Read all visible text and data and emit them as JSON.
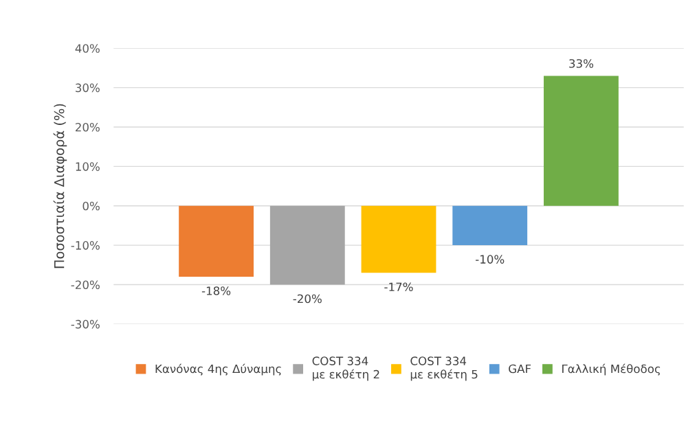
{
  "chart_data": {
    "type": "bar",
    "ylabel": "Ποσοστιαία Διαφορά (%)",
    "categories": [
      null
    ],
    "series": [
      {
        "name": "Κανόνας 4ης Δύναμης",
        "color": "#ed7d31",
        "values": [
          -18
        ],
        "value_labels": [
          "-18%"
        ]
      },
      {
        "name": "COST 334\nμε εκθέτη 2",
        "color": "#a5a5a5",
        "values": [
          -20
        ],
        "value_labels": [
          "-20%"
        ]
      },
      {
        "name": "COST 334\nμε εκθέτη 5",
        "color": "#ffc000",
        "values": [
          -17
        ],
        "value_labels": [
          "-17%"
        ]
      },
      {
        "name": "GAF",
        "color": "#5b9bd5",
        "values": [
          -10
        ],
        "value_labels": [
          "-10%"
        ]
      },
      {
        "name": "Γαλλική Μέθοδος",
        "color": "#70ad47",
        "values": [
          33
        ],
        "value_labels": [
          "33%"
        ]
      }
    ],
    "ylim": [
      -30,
      40
    ],
    "yticks": [
      {
        "value": -30,
        "label": "-30%"
      },
      {
        "value": -20,
        "label": "-20%"
      },
      {
        "value": -10,
        "label": "-10%"
      },
      {
        "value": 0,
        "label": "0%"
      },
      {
        "value": 10,
        "label": "10%"
      },
      {
        "value": 20,
        "label": "20%"
      },
      {
        "value": 30,
        "label": "30%"
      },
      {
        "value": 40,
        "label": "40%"
      }
    ],
    "grid": "y",
    "legend": "bottom"
  }
}
